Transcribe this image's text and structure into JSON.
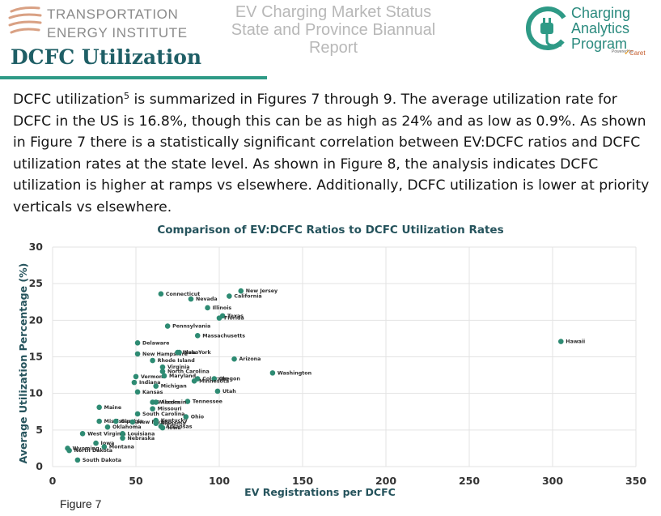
{
  "header": {
    "org_line1": "TRANSPORTATION",
    "org_line2": "ENERGY INSTITUTE",
    "report_title_line1": "EV Charging Market Status",
    "report_title_line2": "State and Province Biannual Report",
    "program_line1": "Charging",
    "program_line2": "Analytics",
    "program_line3": "Program",
    "program_powered": "Powered by",
    "program_partner": "Caret"
  },
  "section": {
    "title": "DCFC Utilization",
    "paragraph_start": "DCFC utilization",
    "footnote_ref": "5",
    "paragraph_rest": " is summarized in Figures 7 through 9. The average utilization rate for DCFC in the US is 16.8%, though this can be as high as 24% and as low as 0.9%. As shown in Figure 7 there is a statistically significant correlation between EV:DCFC ratios and DCFC utilization rates at the state level. As shown in Figure 8, the analysis indicates DCFC utilization is higher at ramps vs elsewhere. Additionally, DCFC utilization is lower at priority verticals vs elsewhere."
  },
  "figure_caption": "Figure 7",
  "colors": {
    "point": "#2e8b73",
    "title": "#1f5f66",
    "rule": "#2e9a86",
    "grid": "#e3e3e3"
  },
  "chart_data": {
    "type": "scatter",
    "title": "Comparison of EV:DCFC Ratios to DCFC Utilization Rates",
    "xlabel": "EV Registrations per DCFC",
    "ylabel": "Average Utilization Percentage (%)",
    "xlim": [
      0,
      350
    ],
    "ylim": [
      0,
      30
    ],
    "xticks": [
      0,
      50,
      100,
      150,
      200,
      250,
      300,
      350
    ],
    "yticks": [
      0,
      5,
      10,
      15,
      20,
      25,
      30
    ],
    "grid": true,
    "points": [
      {
        "label": "New Jersey",
        "x": 113,
        "y": 24.0
      },
      {
        "label": "Connecticut",
        "x": 65,
        "y": 23.6
      },
      {
        "label": "California",
        "x": 106,
        "y": 23.3
      },
      {
        "label": "Nevada",
        "x": 83,
        "y": 22.9
      },
      {
        "label": "Illinois",
        "x": 93,
        "y": 21.7
      },
      {
        "label": "Texas",
        "x": 102,
        "y": 20.6
      },
      {
        "label": "Florida",
        "x": 100,
        "y": 20.3
      },
      {
        "label": "Pennsylvania",
        "x": 69,
        "y": 19.2
      },
      {
        "label": "Massachusetts",
        "x": 87,
        "y": 17.9
      },
      {
        "label": "Hawaii",
        "x": 305,
        "y": 17.1
      },
      {
        "label": "Delaware",
        "x": 51,
        "y": 16.9
      },
      {
        "label": "New Hampshire",
        "x": 51,
        "y": 15.4
      },
      {
        "label": "New York",
        "x": 76,
        "y": 15.6
      },
      {
        "label": "Idaho",
        "x": 75,
        "y": 15.6
      },
      {
        "label": "Arizona",
        "x": 109,
        "y": 14.7
      },
      {
        "label": "Rhode Island",
        "x": 60,
        "y": 14.5
      },
      {
        "label": "Virginia",
        "x": 66,
        "y": 13.6
      },
      {
        "label": "North Carolina",
        "x": 66,
        "y": 13.0
      },
      {
        "label": "Washington",
        "x": 132,
        "y": 12.8
      },
      {
        "label": "Vermont",
        "x": 50,
        "y": 12.3
      },
      {
        "label": "Maryland",
        "x": 67,
        "y": 12.4
      },
      {
        "label": "Colorado",
        "x": 87,
        "y": 12.0
      },
      {
        "label": "Oregon",
        "x": 97,
        "y": 12.0
      },
      {
        "label": "Minnesota",
        "x": 85,
        "y": 11.7
      },
      {
        "label": "Indiana",
        "x": 49,
        "y": 11.5
      },
      {
        "label": "Michigan",
        "x": 62,
        "y": 11.0
      },
      {
        "label": "Kansas",
        "x": 51,
        "y": 10.2
      },
      {
        "label": "Utah",
        "x": 99,
        "y": 10.3
      },
      {
        "label": "Tennessee",
        "x": 81,
        "y": 8.9
      },
      {
        "label": "Wisconsin",
        "x": 60,
        "y": 8.8
      },
      {
        "label": "Alaska",
        "x": 62,
        "y": 8.8
      },
      {
        "label": "Maine",
        "x": 28,
        "y": 8.1
      },
      {
        "label": "Missouri",
        "x": 60,
        "y": 7.9
      },
      {
        "label": "South Carolina",
        "x": 51,
        "y": 7.2
      },
      {
        "label": "Ohio",
        "x": 80,
        "y": 6.8
      },
      {
        "label": "Mississippi",
        "x": 28,
        "y": 6.2
      },
      {
        "label": "Georgia",
        "x": 38,
        "y": 6.2
      },
      {
        "label": "New Mexico",
        "x": 48,
        "y": 6.1
      },
      {
        "label": "Kentucky",
        "x": 62,
        "y": 6.3
      },
      {
        "label": "Alabama",
        "x": 62,
        "y": 5.9
      },
      {
        "label": "Arkansas",
        "x": 65,
        "y": 5.5
      },
      {
        "label": "Iowa",
        "x": 66,
        "y": 5.3
      },
      {
        "label": "Oklahoma",
        "x": 33,
        "y": 5.4
      },
      {
        "label": "West Virginia",
        "x": 18,
        "y": 4.5
      },
      {
        "label": "Louisiana",
        "x": 42,
        "y": 4.5
      },
      {
        "label": "Nebraska",
        "x": 42,
        "y": 3.9
      },
      {
        "label": "Iowa",
        "x": 26,
        "y": 3.2
      },
      {
        "label": "Montana",
        "x": 31,
        "y": 2.7
      },
      {
        "label": "Wyoming",
        "x": 9,
        "y": 2.5
      },
      {
        "label": "North Dakota",
        "x": 10,
        "y": 2.2
      },
      {
        "label": "South Dakota",
        "x": 15,
        "y": 0.9
      }
    ]
  }
}
